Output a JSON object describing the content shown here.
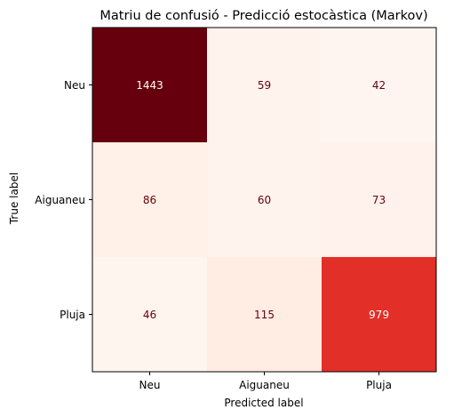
{
  "chart_data": {
    "type": "heatmap",
    "title": "Matriu de confusió - Predicció estocàstica (Markov)",
    "xlabel": "Predicted label",
    "ylabel": "True label",
    "x_categories": [
      "Neu",
      "Aiguaneu",
      "Pluja"
    ],
    "y_categories": [
      "Neu",
      "Aiguaneu",
      "Pluja"
    ],
    "values": [
      [
        1443,
        59,
        42
      ],
      [
        86,
        60,
        73
      ],
      [
        46,
        115,
        979
      ]
    ],
    "colormap": "Reds",
    "value_range": [
      42,
      1443
    ],
    "colorbar": false,
    "grid": false
  }
}
